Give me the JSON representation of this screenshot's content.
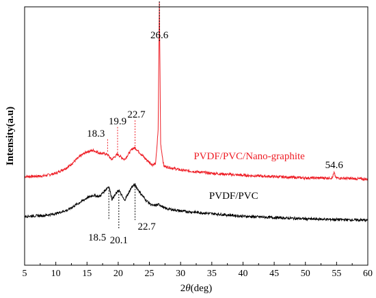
{
  "chart_data": {
    "type": "line",
    "title": "",
    "xlabel_prefix": "2",
    "xlabel_symbol": "θ",
    "xlabel_unit": "(deg)",
    "ylabel": "Intensity(a.u)",
    "xlim": [
      5,
      60
    ],
    "x_ticks": [
      "5",
      "10",
      "15",
      "20",
      "25",
      "30",
      "35",
      "40",
      "45",
      "50",
      "55",
      "60"
    ],
    "y_ticks_shown": false,
    "colors": {
      "red": "#ee1c24",
      "black": "#000000"
    },
    "series": [
      {
        "name": "PVDF/PVC/Nano-graphite",
        "color": "#ee1c24",
        "baseline_relative": 1.0,
        "points": [
          [
            5,
            0.1
          ],
          [
            8,
            0.11
          ],
          [
            10,
            0.15
          ],
          [
            12,
            0.25
          ],
          [
            14,
            0.42
          ],
          [
            15,
            0.48
          ],
          [
            16,
            0.5
          ],
          [
            17,
            0.46
          ],
          [
            18.3,
            0.44
          ],
          [
            18.9,
            0.36
          ],
          [
            19.9,
            0.44
          ],
          [
            21,
            0.36
          ],
          [
            22.2,
            0.52
          ],
          [
            22.7,
            0.54
          ],
          [
            23.5,
            0.46
          ],
          [
            24.5,
            0.36
          ],
          [
            25.5,
            0.28
          ],
          [
            26,
            0.3
          ],
          [
            26.4,
            0.8
          ],
          [
            26.6,
            2.78
          ],
          [
            26.8,
            0.6
          ],
          [
            27.3,
            0.26
          ],
          [
            30,
            0.2
          ],
          [
            35,
            0.15
          ],
          [
            40,
            0.12
          ],
          [
            45,
            0.1
          ],
          [
            50,
            0.08
          ],
          [
            54.3,
            0.08
          ],
          [
            54.6,
            0.16
          ],
          [
            54.9,
            0.08
          ],
          [
            60,
            0.06
          ]
        ]
      },
      {
        "name": "PVDF/PVC",
        "color": "#000000",
        "baseline_relative": 0.0,
        "points": [
          [
            5,
            0.1
          ],
          [
            8,
            0.11
          ],
          [
            10,
            0.14
          ],
          [
            12,
            0.2
          ],
          [
            14,
            0.32
          ],
          [
            15,
            0.38
          ],
          [
            16,
            0.42
          ],
          [
            17,
            0.4
          ],
          [
            18.5,
            0.56
          ],
          [
            19,
            0.36
          ],
          [
            20.1,
            0.5
          ],
          [
            21,
            0.34
          ],
          [
            22.2,
            0.55
          ],
          [
            22.7,
            0.58
          ],
          [
            23.5,
            0.46
          ],
          [
            24.5,
            0.34
          ],
          [
            25.5,
            0.26
          ],
          [
            26.6,
            0.28
          ],
          [
            27.5,
            0.22
          ],
          [
            30,
            0.18
          ],
          [
            35,
            0.14
          ],
          [
            40,
            0.1
          ],
          [
            45,
            0.08
          ],
          [
            50,
            0.06
          ],
          [
            55,
            0.05
          ],
          [
            60,
            0.04
          ]
        ]
      }
    ],
    "annotations": [
      {
        "text": "26.6",
        "x": 26.6,
        "color": "#000000",
        "series": "PVDF/PVC/Nano-graphite",
        "position": "above"
      },
      {
        "text": "19.9",
        "x": 19.9,
        "color": "#000000",
        "series": "PVDF/PVC/Nano-graphite",
        "position": "above"
      },
      {
        "text": "18.3",
        "x": 18.3,
        "color": "#000000",
        "series": "PVDF/PVC/Nano-graphite",
        "position": "above-left"
      },
      {
        "text": "22.7",
        "x": 22.7,
        "color": "#000000",
        "series": "PVDF/PVC/Nano-graphite",
        "position": "above-right"
      },
      {
        "text": "54.6",
        "x": 54.6,
        "color": "#000000",
        "series": "PVDF/PVC/Nano-graphite",
        "position": "above"
      },
      {
        "text": "18.5",
        "x": 18.5,
        "color": "#000000",
        "series": "PVDF/PVC",
        "position": "below-left"
      },
      {
        "text": "20.1",
        "x": 20.1,
        "color": "#000000",
        "series": "PVDF/PVC",
        "position": "below"
      },
      {
        "text": "22.7",
        "x": 22.7,
        "color": "#000000",
        "series": "PVDF/PVC",
        "position": "below-right"
      }
    ],
    "series_labels": [
      {
        "text": "PVDF/PVC/Nano-graphite",
        "color": "#ee1c24",
        "x": 41,
        "series": "PVDF/PVC/Nano-graphite"
      },
      {
        "text": "PVDF/PVC",
        "color": "#000000",
        "x": 38.5,
        "series": "PVDF/PVC"
      }
    ],
    "grid": false,
    "legend": "inline"
  }
}
